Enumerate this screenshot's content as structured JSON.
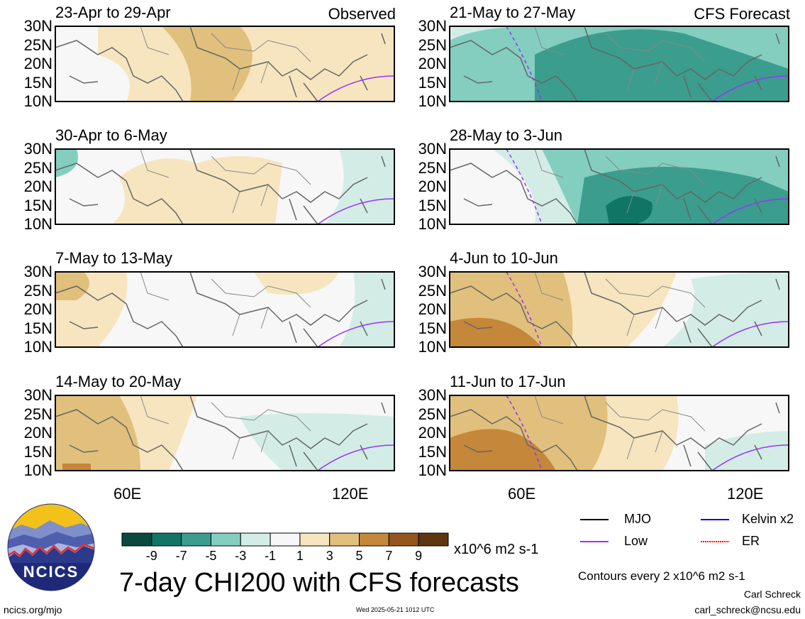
{
  "panels": [
    {
      "title": "23-Apr to 29-Apr",
      "corner": "Observed"
    },
    {
      "title": "21-May to 27-May",
      "corner": "CFS Forecast"
    },
    {
      "title": "30-Apr to 6-May",
      "corner": ""
    },
    {
      "title": "28-May to 3-Jun",
      "corner": ""
    },
    {
      "title": "7-May to 13-May",
      "corner": ""
    },
    {
      "title": "4-Jun to 10-Jun",
      "corner": ""
    },
    {
      "title": "14-May to 20-May",
      "corner": ""
    },
    {
      "title": "11-Jun to 17-Jun",
      "corner": ""
    }
  ],
  "y_ticks": [
    "30N",
    "25N",
    "20N",
    "15N",
    "10N"
  ],
  "x_ticks": [
    "60E",
    "120E"
  ],
  "colorbar": {
    "labels": [
      "-9",
      "-7",
      "-5",
      "-3",
      "-1",
      "1",
      "3",
      "5",
      "7",
      "9"
    ],
    "colors": [
      "#0a4a3e",
      "#117566",
      "#3b9d8e",
      "#83cebf",
      "#d3ede6",
      "#f7f7f7",
      "#f6e5bf",
      "#e0c07c",
      "#c5873a",
      "#94561c",
      "#5e360f"
    ],
    "units": "x10^6 m2 s-1"
  },
  "legend": {
    "items": [
      {
        "label": "MJO",
        "color": "#000000",
        "dashed": false
      },
      {
        "label": "Kelvin x2",
        "color": "#0000ee",
        "dashed": false
      },
      {
        "label": "Low",
        "color": "#9b30ff",
        "dashed": false
      },
      {
        "label": "ER",
        "color": "#ff0000",
        "dashed": true
      }
    ],
    "contours_note": "Contours every 2 x10^6 m2 s-1"
  },
  "main_title": "7-day CHI200 with CFS forecasts",
  "logo_text": "NCICS",
  "footer": {
    "left": "ncics.org/mjo",
    "center": "Wed 2025-05-21 1012 UTC",
    "author": "Carl Schreck",
    "email": "carl_schreck@ncsu.edu"
  }
}
